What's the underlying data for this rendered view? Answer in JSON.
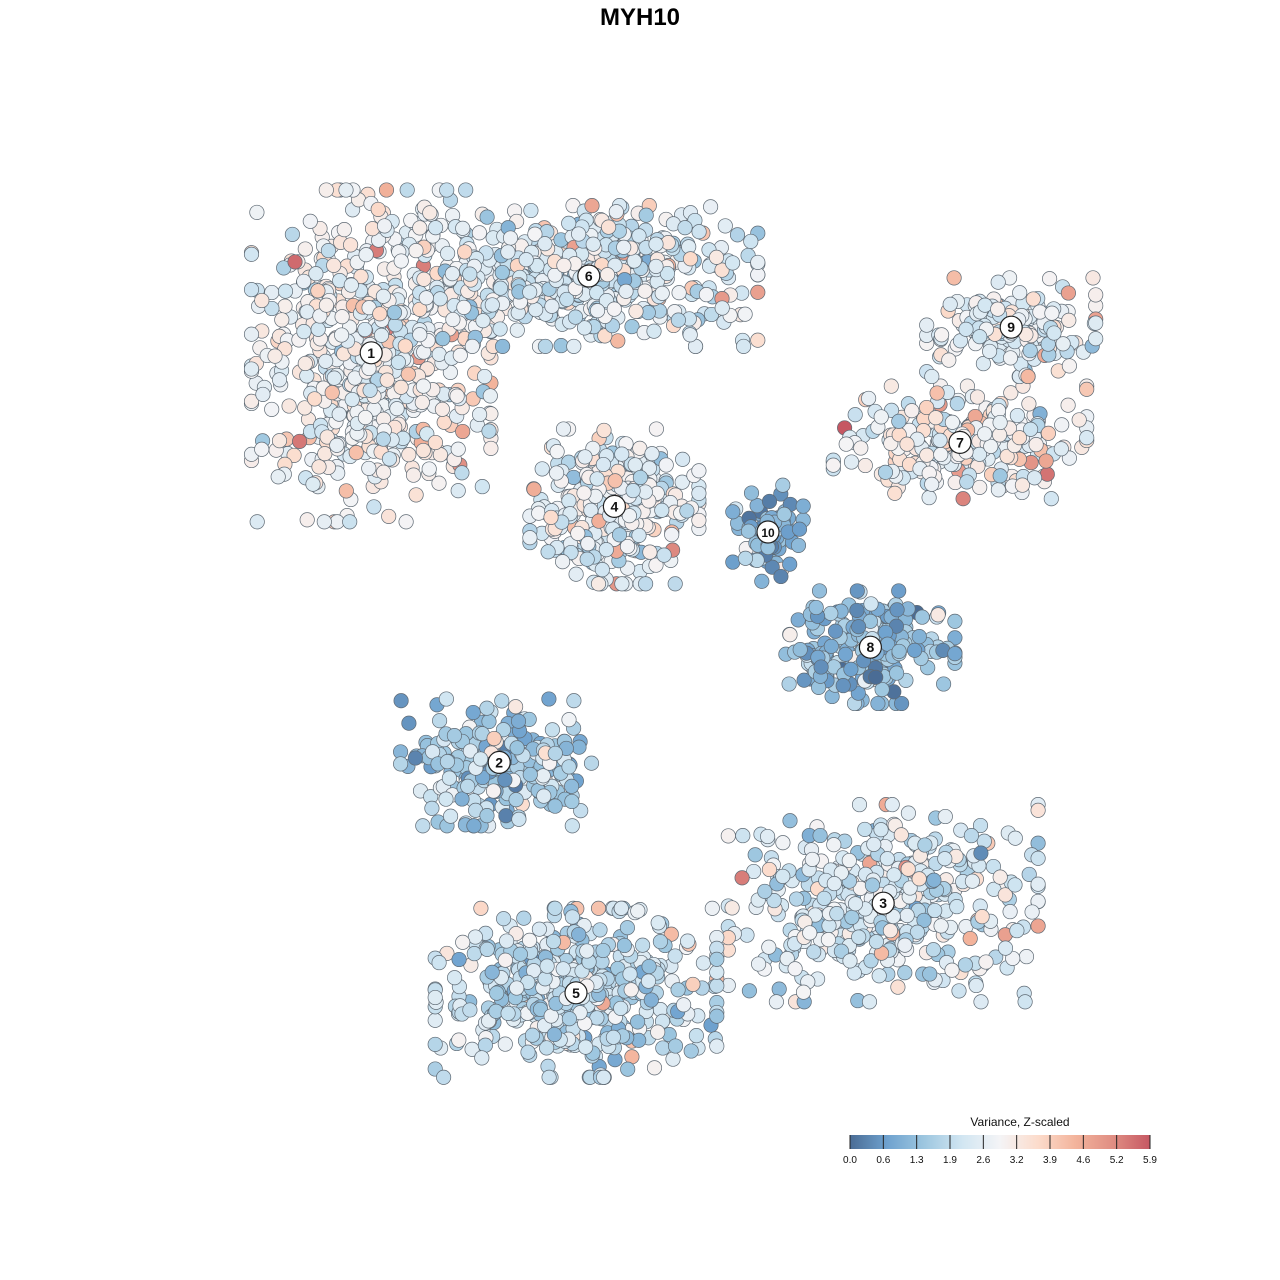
{
  "chart_data": {
    "type": "scatter",
    "title": "MYH10",
    "legend": {
      "title": "Variance, Z-scaled",
      "placement": "bottom-right",
      "ticks": [
        "0.0",
        "0.6",
        "1.3",
        "1.9",
        "2.6",
        "3.2",
        "3.9",
        "4.6",
        "5.2",
        "5.9"
      ],
      "min": 0.0,
      "max": 5.9,
      "colors": [
        "#4a6c95",
        "#6fa2cf",
        "#9ec7e0",
        "#d2e6f2",
        "#f4f4f6",
        "#fcdccc",
        "#f3b49c",
        "#e08e83",
        "#c65863"
      ]
    },
    "clusters": [
      {
        "label": "1",
        "center": [
          0.29,
          0.26
        ],
        "value": 2.9,
        "spread": [
          0.085,
          0.12
        ],
        "count": 620
      },
      {
        "label": "2",
        "center": [
          0.39,
          0.58
        ],
        "value": 1.5,
        "spread": [
          0.07,
          0.045
        ],
        "count": 260
      },
      {
        "label": "3",
        "center": [
          0.69,
          0.69
        ],
        "value": 2.3,
        "spread": [
          0.11,
          0.07
        ],
        "count": 460
      },
      {
        "label": "4",
        "center": [
          0.48,
          0.38
        ],
        "value": 2.6,
        "spread": [
          0.06,
          0.055
        ],
        "count": 330
      },
      {
        "label": "5",
        "center": [
          0.45,
          0.76
        ],
        "value": 2.0,
        "spread": [
          0.1,
          0.06
        ],
        "count": 520
      },
      {
        "label": "6",
        "center": [
          0.46,
          0.2
        ],
        "value": 2.4,
        "spread": [
          0.12,
          0.05
        ],
        "count": 520
      },
      {
        "label": "7",
        "center": [
          0.75,
          0.33
        ],
        "value": 2.9,
        "spread": [
          0.09,
          0.04
        ],
        "count": 280
      },
      {
        "label": "8",
        "center": [
          0.68,
          0.49
        ],
        "value": 1.2,
        "spread": [
          0.06,
          0.04
        ],
        "count": 220
      },
      {
        "label": "9",
        "center": [
          0.79,
          0.24
        ],
        "value": 2.5,
        "spread": [
          0.06,
          0.035
        ],
        "count": 180
      },
      {
        "label": "10",
        "center": [
          0.6,
          0.4
        ],
        "value": 0.9,
        "spread": [
          0.025,
          0.035
        ],
        "count": 80
      }
    ]
  }
}
